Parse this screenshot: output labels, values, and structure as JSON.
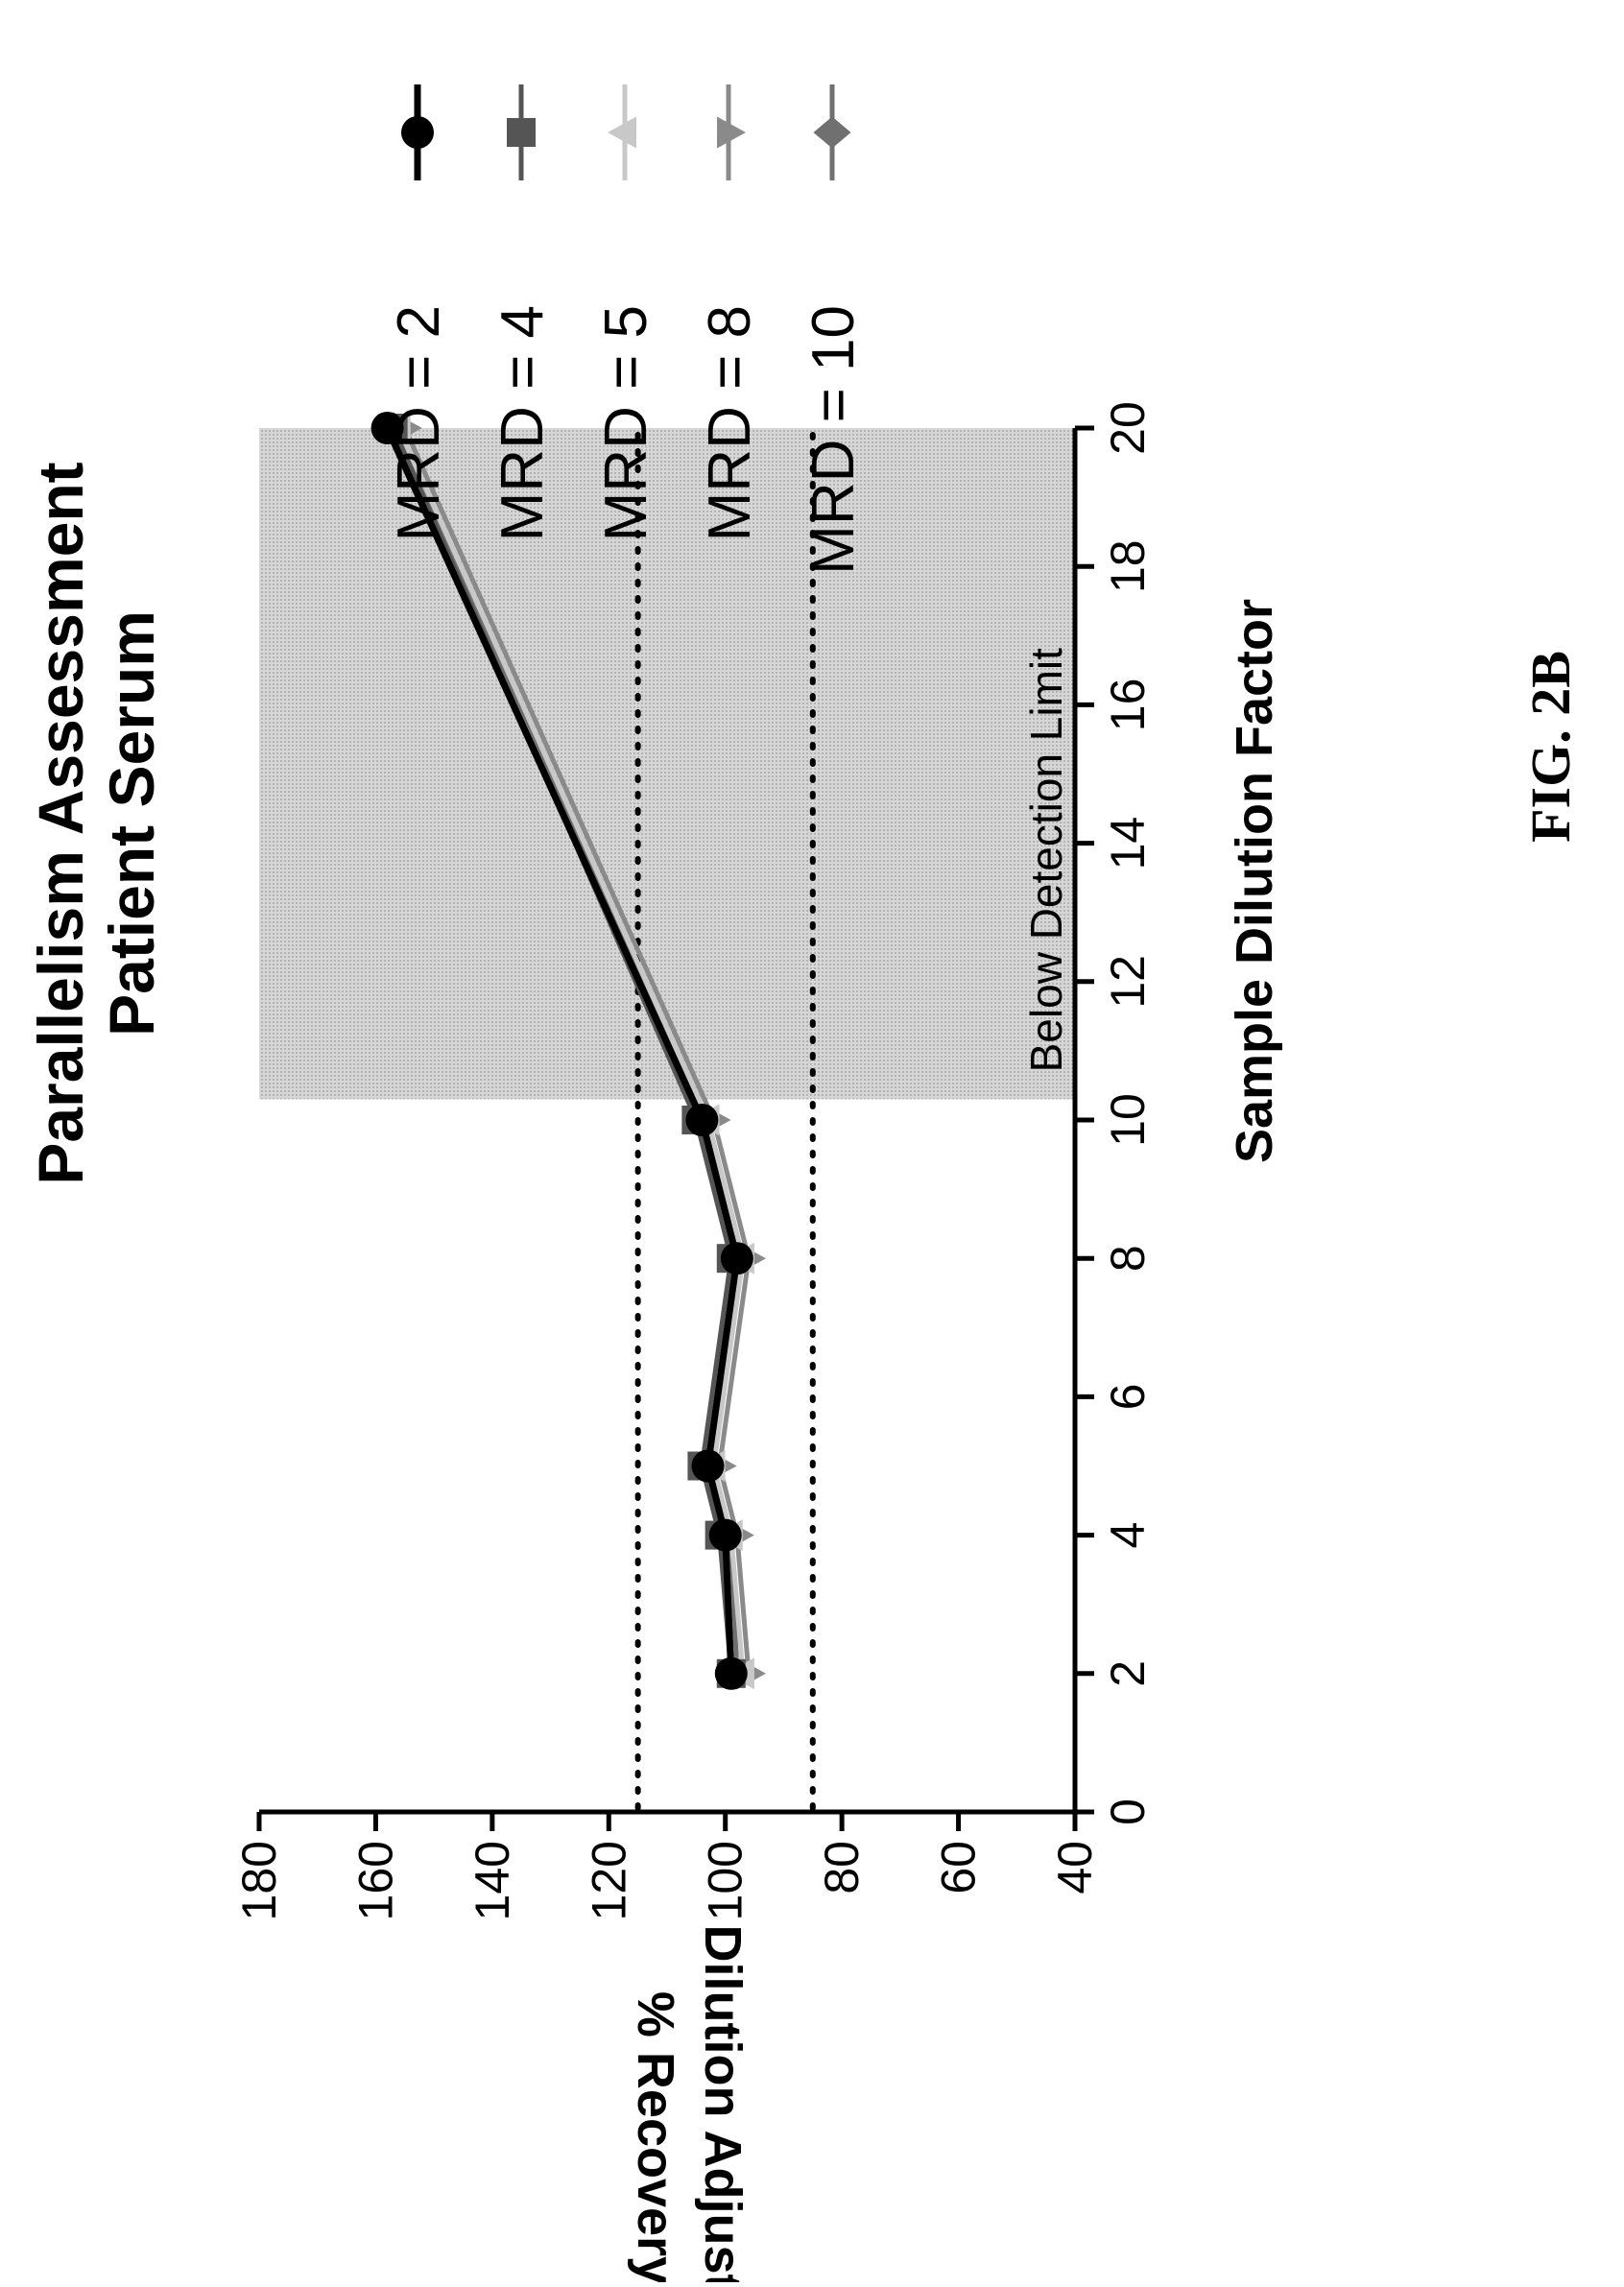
{
  "figure_label": "FIG. 2B",
  "colors": {
    "ink": "#000000",
    "shade": "#bdbdbd",
    "marker_gray": "#8a8a8a",
    "marker_light": "#c8c8c8"
  },
  "chart_data": {
    "type": "line",
    "title": "Parallelism Assessment",
    "subtitle": "Patient Serum",
    "xlabel": "Sample Dilution Factor",
    "ylabel": [
      "Dilution Adjusted",
      "% Recovery"
    ],
    "xlim": [
      0,
      20
    ],
    "ylim": [
      40,
      180
    ],
    "x_ticks": [
      0,
      2,
      4,
      6,
      8,
      10,
      12,
      14,
      16,
      18,
      20
    ],
    "y_ticks": [
      40,
      60,
      80,
      100,
      120,
      140,
      160,
      180
    ],
    "x": [
      2,
      4,
      5,
      8,
      10,
      20
    ],
    "series": [
      {
        "name": "MRD = 2",
        "marker": "circle",
        "values": [
          99,
          100,
          103,
          98,
          104,
          158
        ]
      },
      {
        "name": "MRD = 4",
        "marker": "square",
        "values": [
          99,
          101,
          104,
          99,
          105,
          157
        ]
      },
      {
        "name": "MRD = 5",
        "marker": "triangle-up",
        "values": [
          97,
          99,
          102,
          97,
          103,
          156
        ]
      },
      {
        "name": "MRD = 8",
        "marker": "triangle-down",
        "values": [
          96,
          98,
          101,
          96,
          102,
          155
        ]
      },
      {
        "name": "MRD = 10",
        "marker": "diamond",
        "values": [
          98,
          99,
          103,
          97,
          103,
          157
        ]
      }
    ],
    "reference_lines": [
      115,
      85
    ],
    "shaded_region": {
      "x_from": 10.3,
      "x_to": 20,
      "label": "Below Detection Limit"
    },
    "legend_position": "right",
    "orientation": "rotated 90° counter-clockwise on the page"
  }
}
